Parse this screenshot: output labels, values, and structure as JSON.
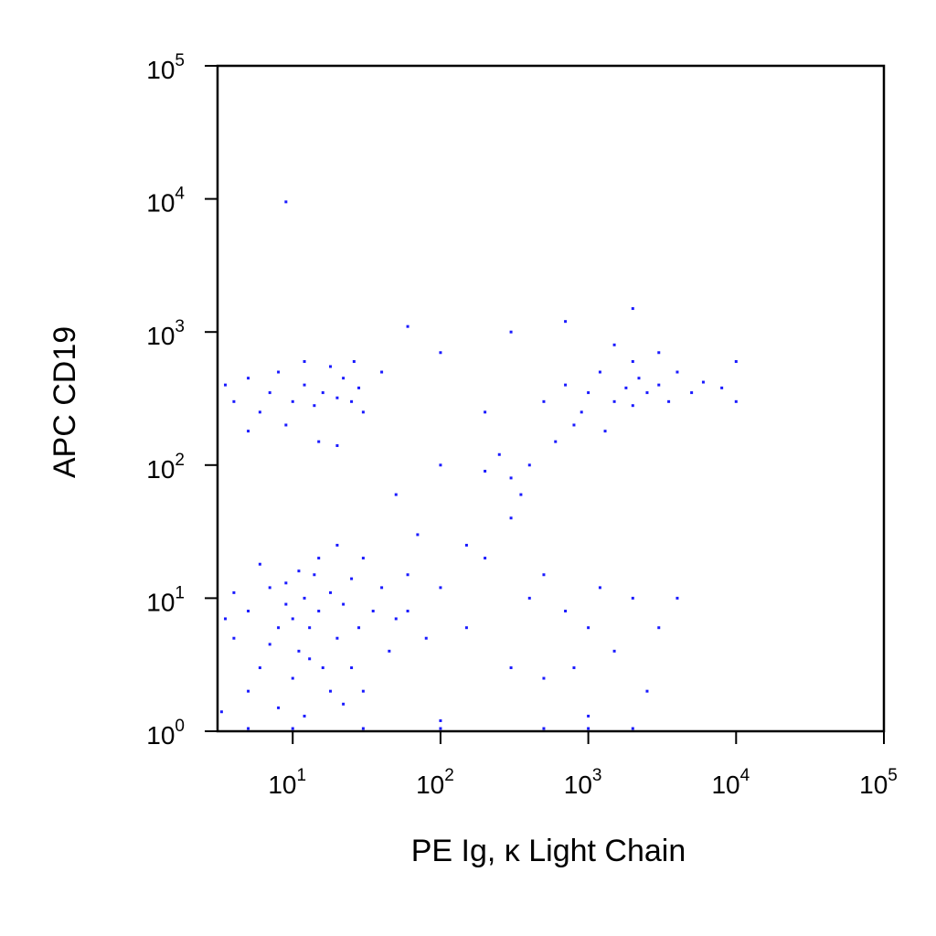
{
  "chart_data": {
    "type": "scatter",
    "x_label": "PE Ig, κ Light Chain",
    "y_label": "APC CD19",
    "log_x": true,
    "log_y": true,
    "xlim": [
      3.1,
      100000
    ],
    "ylim": [
      1,
      100000
    ],
    "xticks": [
      {
        "value": 10,
        "label": "10",
        "sup": "1"
      },
      {
        "value": 100,
        "label": "10",
        "sup": "2"
      },
      {
        "value": 1000,
        "label": "10",
        "sup": "3"
      },
      {
        "value": 10000,
        "label": "10",
        "sup": "4"
      },
      {
        "value": 100000,
        "label": "10",
        "sup": "5"
      }
    ],
    "yticks": [
      {
        "value": 1,
        "label": "10",
        "sup": "0"
      },
      {
        "value": 10,
        "label": "10",
        "sup": "1"
      },
      {
        "value": 100,
        "label": "10",
        "sup": "2"
      },
      {
        "value": 1000,
        "label": "10",
        "sup": "3"
      },
      {
        "value": 10000,
        "label": "10",
        "sup": "4"
      },
      {
        "value": 100000,
        "label": "10",
        "sup": "5"
      }
    ],
    "color": "#1a1aff",
    "x": [
      4,
      5,
      6,
      7,
      8,
      9,
      10,
      11,
      12,
      13,
      14,
      15,
      16,
      18,
      20,
      22,
      25,
      28,
      30,
      35,
      40,
      45,
      5,
      6,
      8,
      10,
      12,
      15,
      18,
      25,
      4,
      3.5,
      7,
      9,
      11,
      13,
      20,
      30,
      50,
      60,
      3.3,
      22,
      4,
      5,
      6,
      7,
      8,
      10,
      12,
      14,
      16,
      18,
      20,
      22,
      25,
      28,
      30,
      5,
      9,
      15,
      20,
      12,
      26,
      3.5,
      500,
      700,
      900,
      1000,
      1200,
      1500,
      1800,
      2000,
      2200,
      2500,
      3000,
      3500,
      4000,
      5000,
      6000,
      8000,
      10000,
      10000,
      800,
      1300,
      2000,
      600,
      3000,
      1500,
      400,
      300,
      250,
      350,
      200,
      60,
      80,
      100,
      150,
      200,
      300,
      400,
      500,
      700,
      800,
      1000,
      1200,
      1500,
      2000,
      2500,
      3000,
      4000,
      100,
      500,
      1000,
      70,
      150,
      300,
      50,
      100,
      200,
      40,
      100,
      9,
      60,
      300,
      2000,
      700,
      5,
      10,
      30,
      100,
      500,
      1000,
      2000
    ],
    "y": [
      5,
      8,
      3,
      12,
      6,
      9,
      7,
      4,
      10,
      6,
      15,
      8,
      3,
      11,
      5,
      9,
      14,
      6,
      20,
      8,
      12,
      4,
      2,
      18,
      1.5,
      2.5,
      1.3,
      20,
      2,
      3,
      11,
      7,
      4.5,
      13,
      16,
      3.5,
      25,
      2,
      7,
      15,
      1.4,
      1.6,
      300,
      450,
      250,
      350,
      500,
      300,
      400,
      280,
      350,
      550,
      320,
      450,
      300,
      380,
      250,
      180,
      200,
      150,
      140,
      600,
      600,
      400,
      300,
      400,
      250,
      350,
      500,
      300,
      380,
      280,
      450,
      350,
      400,
      300,
      500,
      350,
      420,
      380,
      300,
      600,
      200,
      180,
      600,
      150,
      700,
      800,
      100,
      80,
      120,
      60,
      90,
      8,
      5,
      12,
      6,
      20,
      3,
      10,
      15,
      8,
      3,
      6,
      12,
      4,
      10,
      2,
      6,
      10,
      1.2,
      2.5,
      1.3,
      30,
      25,
      40,
      60,
      100,
      250,
      500,
      700,
      9500,
      1100,
      1000,
      1500,
      1200,
      1,
      1,
      1,
      1,
      1,
      1,
      1
    ]
  }
}
